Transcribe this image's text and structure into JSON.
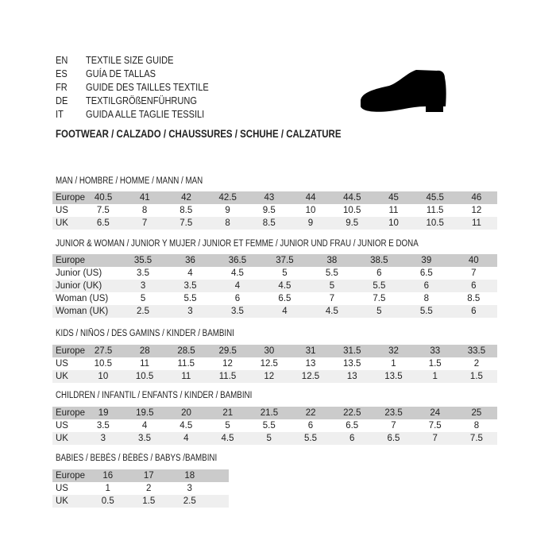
{
  "guide": [
    {
      "code": "EN",
      "text": "TEXTILE SIZE GUIDE"
    },
    {
      "code": "ES",
      "text": "GUÍA DE TALLAS"
    },
    {
      "code": "FR",
      "text": "GUIDE DES TAILLES TEXTILE"
    },
    {
      "code": "DE",
      "text": "TEXTILGRÖßENFÜHRUNG"
    },
    {
      "code": "IT",
      "text": "GUIDA ALLE TAGLIE TESSILI"
    }
  ],
  "footwear_title": "FOOTWEAR / CALZADO / CHAUSSURES / SCHUHE / CALZATURE",
  "shoe_icon": "shoe-silhouette-icon",
  "tables": [
    {
      "title": "MAN / HOMBRE / HOMME / MANN / MAN",
      "rows": [
        {
          "label": "Europe",
          "values": [
            "40.5",
            "41",
            "42",
            "42.5",
            "43",
            "44",
            "44.5",
            "45",
            "45.5",
            "46"
          ]
        },
        {
          "label": "US",
          "values": [
            "7.5",
            "8",
            "8.5",
            "9",
            "9.5",
            "10",
            "10.5",
            "11",
            "11.5",
            "12"
          ]
        },
        {
          "label": "UK",
          "values": [
            "6.5",
            "7",
            "7.5",
            "8",
            "8.5",
            "9",
            "9.5",
            "10",
            "10.5",
            "11"
          ]
        }
      ]
    },
    {
      "title": "JUNIOR & WOMAN / JUNIOR Y MUJER / JUNIOR ET FEMME / JUNIOR UND FRAU / JUNIOR E DONA",
      "rows": [
        {
          "label": "Europe",
          "values": [
            "35.5",
            "36",
            "36.5",
            "37.5",
            "38",
            "38.5",
            "39",
            "40"
          ]
        },
        {
          "label": "Junior (US)",
          "values": [
            "3.5",
            "4",
            "4.5",
            "5",
            "5.5",
            "6",
            "6.5",
            "7"
          ]
        },
        {
          "label": "Junior (UK)",
          "values": [
            "3",
            "3.5",
            "4",
            "4.5",
            "5",
            "5.5",
            "6",
            "6"
          ]
        },
        {
          "label": "Woman (US)",
          "values": [
            "5",
            "5.5",
            "6",
            "6.5",
            "7",
            "7.5",
            "8",
            "8.5"
          ]
        },
        {
          "label": "Woman (UK)",
          "values": [
            "2.5",
            "3",
            "3.5",
            "4",
            "4.5",
            "5",
            "5.5",
            "6"
          ]
        }
      ]
    },
    {
      "title": "KIDS / NIÑOS / DES GAMINS / KINDER / BAMBINI",
      "rows": [
        {
          "label": "Europe",
          "values": [
            "27.5",
            "28",
            "28.5",
            "29.5",
            "30",
            "31",
            "31.5",
            "32",
            "33",
            "33.5"
          ]
        },
        {
          "label": "US",
          "values": [
            "10.5",
            "11",
            "11.5",
            "12",
            "12.5",
            "13",
            "13.5",
            "1",
            "1.5",
            "2"
          ]
        },
        {
          "label": "UK",
          "values": [
            "10",
            "10.5",
            "11",
            "11.5",
            "12",
            "12.5",
            "13",
            "13.5",
            "1",
            "1.5"
          ]
        }
      ]
    },
    {
      "title": "CHILDREN / INFANTIL / ENFANTS / KINDER / BAMBINI",
      "rows": [
        {
          "label": "Europe",
          "values": [
            "19",
            "19.5",
            "20",
            "21",
            "21.5",
            "22",
            "22.5",
            "23.5",
            "24",
            "25"
          ]
        },
        {
          "label": "US",
          "values": [
            "3.5",
            "4",
            "4.5",
            "5",
            "5.5",
            "6",
            "6.5",
            "7",
            "7.5",
            "8"
          ]
        },
        {
          "label": "UK",
          "values": [
            "3",
            "3.5",
            "4",
            "4.5",
            "5",
            "5.5",
            "6",
            "6.5",
            "7",
            "7.5"
          ]
        }
      ]
    },
    {
      "title": "BABIES  / BEBÉS / BÉBÉS / BABYS /BAMBINI",
      "rows": [
        {
          "label": "Europe",
          "values": [
            "16",
            "17",
            "18"
          ]
        },
        {
          "label": "US",
          "values": [
            "1",
            "2",
            "3"
          ]
        },
        {
          "label": "UK",
          "values": [
            "0.5",
            "1.5",
            "2.5"
          ]
        }
      ]
    }
  ]
}
